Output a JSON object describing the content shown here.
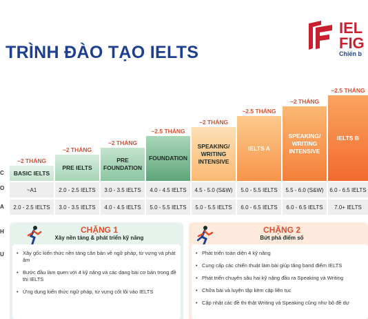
{
  "header": {
    "title": "TRÌNH ĐÀO TẠO IELTS",
    "logo_line1": "IEL",
    "logo_line2": "FIG",
    "logo_tagline": "Chiến b"
  },
  "row_labels": {
    "level_label": "C",
    "input_label": "O",
    "output_label": "A",
    "stage_label_1": "H",
    "stage_label_2": "U"
  },
  "levels": [
    {
      "duration": "~2 THÁNG",
      "name": "BASIC IELTS",
      "input": "~A1",
      "output": "2.0 - 2.5 IELTS"
    },
    {
      "duration": "~2 THÁNG",
      "name": "PRE IELTS",
      "input": "2.0 - 2.5 IELTS",
      "output": "3.0 - 3.5 IELTS"
    },
    {
      "duration": "~2 THÁNG",
      "name": "PRE FOUNDATION",
      "input": "3.0 - 3.5 IELTS",
      "output": "4.0 - 4.5 IELTS"
    },
    {
      "duration": "~2.5 THÁNG",
      "name": "FOUNDATION",
      "input": "4.0 - 4.5 IELTS",
      "output": "5.0 - 5.5 IELTS"
    },
    {
      "duration": "~2 THÁNG",
      "name": "SPEAKING/ WRITING INTENSIVE",
      "input": "4.5 - 5.0 (S&W)",
      "output": "5.0 - 5.5 IELTS"
    },
    {
      "duration": "~2.5 THÁNG",
      "name": "IELTS A",
      "input": "5.0 - 5.5 IELTS",
      "output": "6.0 - 6.5 IELTS"
    },
    {
      "duration": "~2 THÁNG",
      "name": "SPEAKING/ WRITING INTENSIVE",
      "input": "5.5 - 6.0 (S&W)",
      "output": "6.0 - 6.5 IELTS"
    },
    {
      "duration": "~2.5 THÁNG",
      "name": "IELTS B",
      "input": "6.0 - 6.5 IELTS",
      "output": "7.0+ IELTS"
    }
  ],
  "stage1": {
    "title": "CHẶNG 1",
    "subtitle": "Xây nền tảng & phát triển kỹ năng",
    "bullets": [
      "Xây gốc kiến thức nền tảng căn bản về ngữ pháp, từ vựng và phát âm",
      "Bước đầu làm quen với 4 kỹ năng và các dạng bài cơ bản trong đề thi IELTS",
      "Ứng dụng kiến thức ngữ pháp, từ vựng cốt lõi vào IELTS"
    ]
  },
  "stage2": {
    "title": "CHẶNG 2",
    "subtitle": "Bứt phá điểm số",
    "bullets": [
      "Phát triển toàn diện 4 kỹ năng",
      "Cung cấp các chiến thuật làm bài giúp tăng band điểm IELTS",
      "Phát triển chuyên sâu hai kỹ năng đầu ra Speaking và Writing",
      "Chữa bài và luyện tập kèm cặp liên tục",
      "Cập nhật các đề thi thật Writing và Speaking cũng như bộ đề dự"
    ]
  },
  "colors": {
    "title_blue": "#1e3f8f",
    "accent_red": "#e24b2b",
    "green_light": "#e3f1e8",
    "green_dark": "#5fa57a",
    "orange_light": "#fcd29b",
    "orange_dark": "#f36a2e"
  },
  "icons": [
    "ielts-fighter-logo-icon",
    "running-person-icon",
    "runner-flag-icon"
  ]
}
